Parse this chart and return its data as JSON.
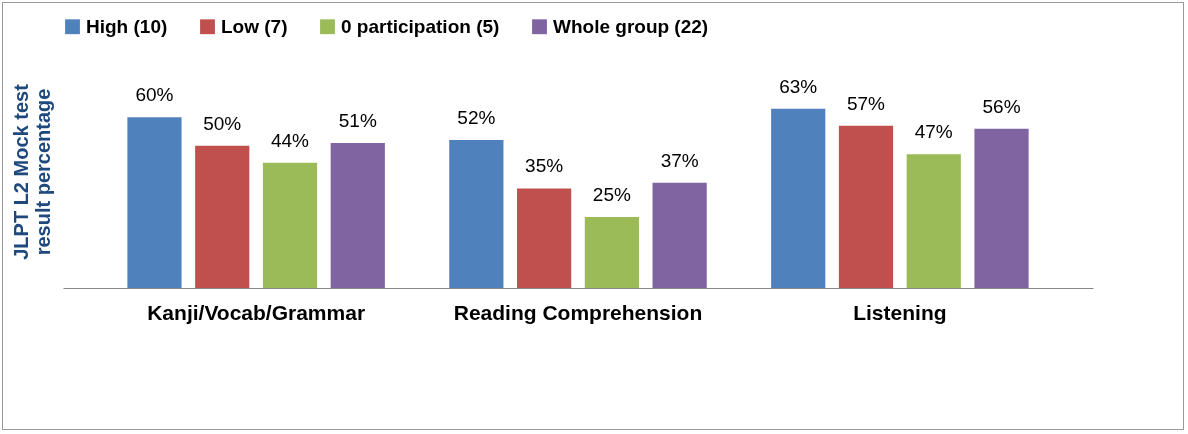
{
  "chart_data": {
    "type": "bar",
    "ylabel": "JLPT L2 Mock test result percentage",
    "categories": [
      "Kanji/Vocab/Grammar",
      "Reading Comprehension",
      "Listening"
    ],
    "series": [
      {
        "name": "High (10)",
        "color": "#4f81bd",
        "values": [
          60,
          52,
          63
        ],
        "value_labels": [
          "60%",
          "52%",
          "63%"
        ]
      },
      {
        "name": "Low (7)",
        "color": "#c0504d",
        "values": [
          50,
          35,
          57
        ],
        "value_labels": [
          "50%",
          "35%",
          "57%"
        ]
      },
      {
        "name": "0 participation (5)",
        "color": "#9bbb59",
        "values": [
          44,
          25,
          47
        ],
        "value_labels": [
          "44%",
          "25%",
          "47%"
        ]
      },
      {
        "name": "Whole group (22)",
        "color": "#8064a2",
        "values": [
          51,
          37,
          56
        ],
        "value_labels": [
          "51%",
          "37%",
          "56%"
        ]
      }
    ],
    "legend": "top",
    "grid": false,
    "tick_labels": "x"
  }
}
